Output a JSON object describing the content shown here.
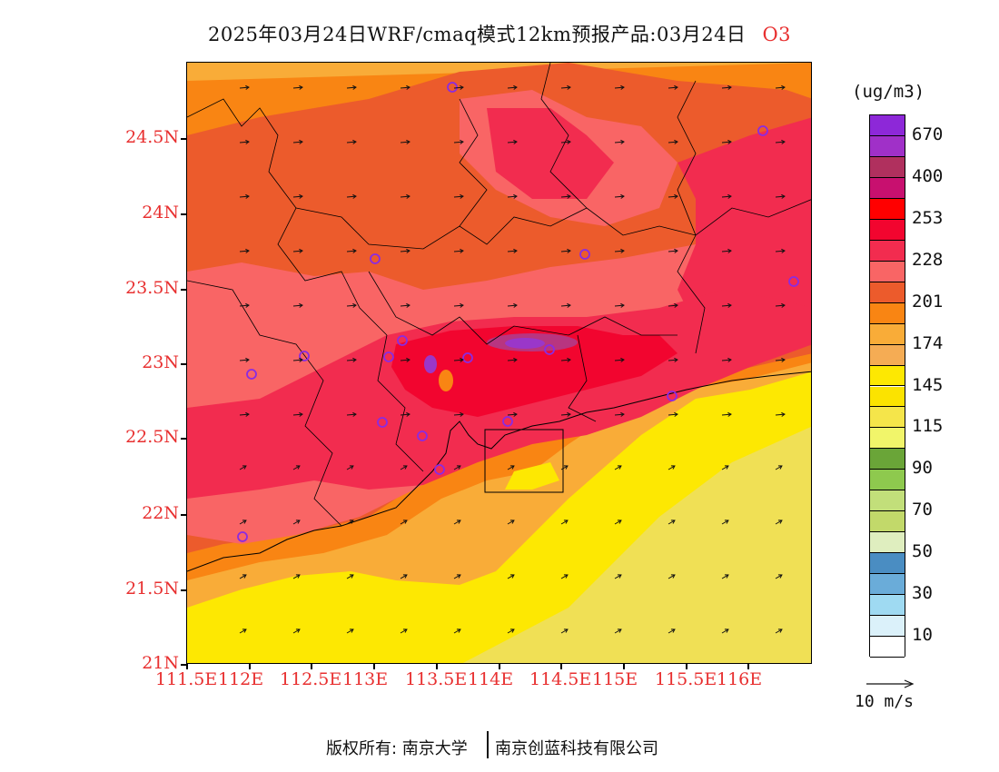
{
  "title": {
    "main": "2025年03月24日WRF/cmaq模式12km预报产品:03月24日",
    "species": "O3"
  },
  "map": {
    "lat_labels": [
      "24.5N",
      "24N",
      "23.5N",
      "23N",
      "22.5N",
      "22N",
      "21.5N",
      "21N"
    ],
    "lon_labels": [
      "111.5E",
      "112E",
      "112.5E",
      "113E",
      "113.5E",
      "114E",
      "114.5E",
      "115E",
      "115.5E",
      "116E"
    ],
    "fill_colors": {
      "yellow": "#fde802",
      "pale_yellow": "#f0e055",
      "light_orange": "#f9ac38",
      "orange": "#f98513",
      "dark_orange": "#ec5b2c",
      "salmon": "#f96565",
      "pink_red": "#f22c4f",
      "red": "#f2052f",
      "magenta": "#b83580",
      "purple": "#9a37c9"
    }
  },
  "legend": {
    "unit": "(ug/m3)",
    "colors": [
      "#8d28d8",
      "#a030c8",
      "#b0305e",
      "#c8106f",
      "#ff0000",
      "#f2052f",
      "#f22c4f",
      "#f96565",
      "#ec5b2c",
      "#f98513",
      "#f9ac38",
      "#f5ac54",
      "#fde802",
      "#fbe300",
      "#f5e54a",
      "#f1f56a",
      "#6aa538",
      "#8ec94e",
      "#c2df7a",
      "#c2d96a",
      "#dfeebf",
      "#4a8dc2",
      "#6aacd9",
      "#9fdaf2",
      "#dbf1fa",
      "#ffffff"
    ],
    "labels": [
      "670",
      "400",
      "253",
      "228",
      "201",
      "174",
      "145",
      "115",
      "90",
      "70",
      "50",
      "30",
      "10"
    ]
  },
  "wind_ref": {
    "label": "10 m/s"
  },
  "footer": {
    "left": "版权所有: 南京大学",
    "right": "南京创蓝科技有限公司"
  }
}
